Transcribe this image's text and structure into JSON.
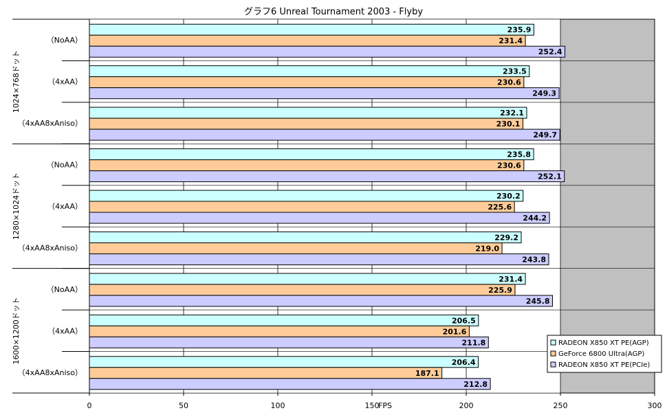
{
  "chart_data": {
    "type": "bar",
    "orientation": "horizontal",
    "title": "グラフ6  Unreal Tournament 2003 - Flyby",
    "xlabel": "FPS",
    "xlim": [
      0,
      300
    ],
    "xticks": [
      0,
      50,
      100,
      150,
      200,
      250,
      300
    ],
    "xtick_labels": [
      "0",
      "50",
      "100",
      "150",
      "200",
      "250",
      "300"
    ],
    "grid": true,
    "legend_position": "bottom-right",
    "groups": [
      {
        "label": "1024×768ドット",
        "subgroups": [
          "（NoAA）",
          "（4xAA）",
          "（4xAA8xAniso）"
        ]
      },
      {
        "label": "1280×1024ドット",
        "subgroups": [
          "（NoAA）",
          "（4xAA）",
          "（4xAA8xAniso）"
        ]
      },
      {
        "label": "1600×1200ドット",
        "subgroups": [
          "（NoAA）",
          "（4xAA）",
          "（4xAA8xAniso）"
        ]
      }
    ],
    "series": [
      {
        "name": "RADEON X850 XT PE(AGP)",
        "color": "#ccffff",
        "values": [
          235.9,
          233.5,
          232.1,
          235.8,
          230.2,
          229.2,
          231.4,
          206.5,
          206.4
        ]
      },
      {
        "name": "GeForce 6800 Ultra(AGP)",
        "color": "#ffcc99",
        "values": [
          231.4,
          230.6,
          230.1,
          230.6,
          225.6,
          219.0,
          225.9,
          201.6,
          187.1
        ]
      },
      {
        "name": "RADEON X850 XT PE(PCIe)",
        "color": "#ccccff",
        "values": [
          252.4,
          249.3,
          249.7,
          252.1,
          244.2,
          243.8,
          245.8,
          211.8,
          212.8
        ]
      }
    ],
    "value_format_decimals": 1,
    "colors": {
      "plot_background": "#c0c0c0",
      "highlight_band": "#ffffff",
      "gridline": "#000000"
    },
    "highlight_band_range": [
      0,
      250
    ]
  }
}
